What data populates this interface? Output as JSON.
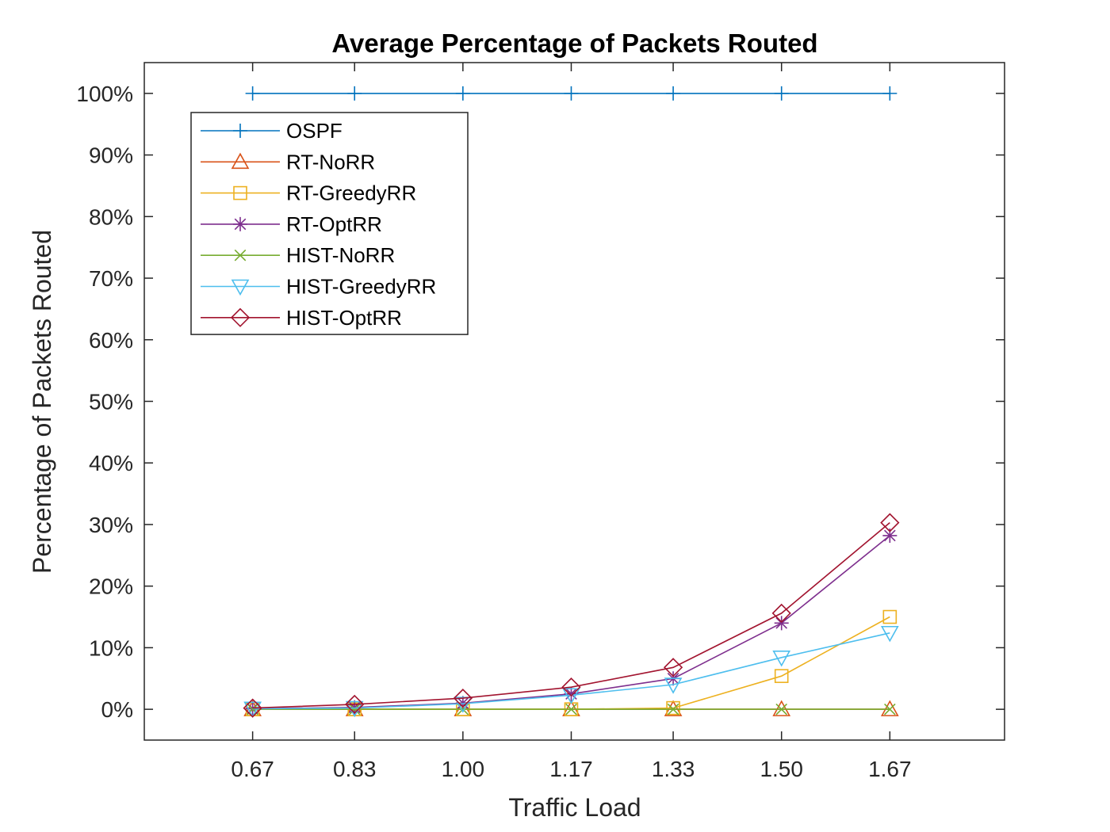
{
  "chart_data": {
    "type": "line",
    "title": "Average Percentage of Packets Routed",
    "xlabel": "Traffic Load",
    "ylabel": "Percentage of Packets Routed",
    "x": [
      0.67,
      0.83,
      1.0,
      1.17,
      1.33,
      1.5,
      1.67
    ],
    "x_tick_labels": [
      "0.67",
      "0.83",
      "1.00",
      "1.17",
      "1.33",
      "1.50",
      "1.67"
    ],
    "xlim": [
      0.5,
      1.85
    ],
    "ylim": [
      -5,
      105
    ],
    "y_ticks": [
      0,
      10,
      20,
      30,
      40,
      50,
      60,
      70,
      80,
      90,
      100
    ],
    "y_tick_labels": [
      "0%",
      "10%",
      "20%",
      "30%",
      "40%",
      "50%",
      "60%",
      "70%",
      "80%",
      "90%",
      "100%"
    ],
    "grid": false,
    "legend_position": "top-left",
    "series": [
      {
        "name": "OSPF",
        "color": "#0072BD",
        "marker": "plus",
        "values": [
          100,
          100,
          100,
          100,
          100,
          100,
          100
        ]
      },
      {
        "name": "RT-NoRR",
        "color": "#D95319",
        "marker": "triangle-up",
        "values": [
          0,
          0,
          0,
          0,
          0,
          0,
          0
        ]
      },
      {
        "name": "RT-GreedyRR",
        "color": "#EDB120",
        "marker": "square",
        "values": [
          0,
          0,
          0,
          0,
          0.2,
          5.4,
          15.0
        ]
      },
      {
        "name": "RT-OptRR",
        "color": "#7E2F8E",
        "marker": "asterisk",
        "values": [
          0.1,
          0.3,
          1.0,
          2.5,
          5.0,
          14.0,
          28.2
        ]
      },
      {
        "name": "HIST-NoRR",
        "color": "#77AC30",
        "marker": "x",
        "values": [
          0,
          0,
          0,
          0,
          0,
          0,
          0
        ]
      },
      {
        "name": "HIST-GreedyRR",
        "color": "#4DBEEE",
        "marker": "triangle-down",
        "values": [
          0.1,
          0.2,
          0.9,
          2.3,
          4.0,
          8.4,
          12.4
        ]
      },
      {
        "name": "HIST-OptRR",
        "color": "#A2142F",
        "marker": "diamond",
        "values": [
          0.2,
          0.8,
          1.8,
          3.6,
          6.8,
          15.6,
          30.3
        ]
      }
    ]
  }
}
